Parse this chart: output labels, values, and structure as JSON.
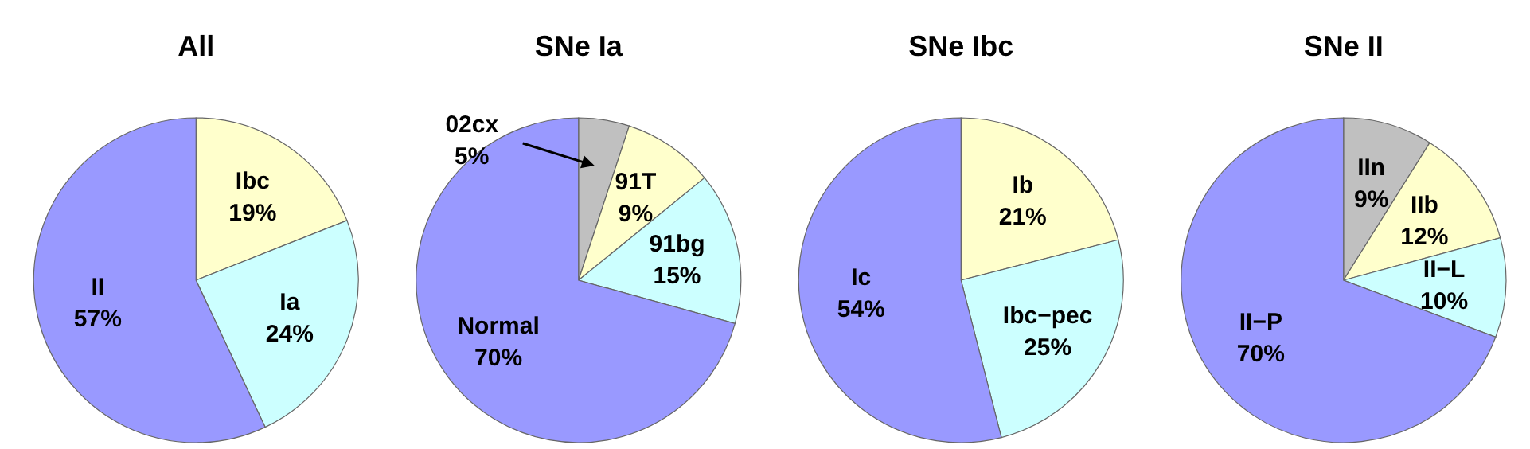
{
  "chart_data": [
    {
      "type": "pie",
      "title": "All",
      "categories": [
        "Ibc",
        "Ia",
        "II"
      ],
      "values": [
        19,
        24,
        57
      ],
      "value_labels": [
        "19%",
        "24%",
        "57%"
      ],
      "colors": [
        "#ffffcc",
        "#ccffff",
        "#9999ff"
      ]
    },
    {
      "type": "pie",
      "title": "SNe Ia",
      "categories": [
        "02cx",
        "91T",
        "91bg",
        "Normal"
      ],
      "values": [
        5,
        9,
        15,
        70
      ],
      "value_labels": [
        "5%",
        "9%",
        "15%",
        "70%"
      ],
      "colors": [
        "#c0c0c0",
        "#ffffcc",
        "#ccffff",
        "#9999ff"
      ]
    },
    {
      "type": "pie",
      "title": "SNe Ibc",
      "categories": [
        "Ib",
        "Ibc−pec",
        "Ic"
      ],
      "values": [
        21,
        25,
        54
      ],
      "value_labels": [
        "21%",
        "25%",
        "54%"
      ],
      "colors": [
        "#ffffcc",
        "#ccffff",
        "#9999ff"
      ]
    },
    {
      "type": "pie",
      "title": "SNe II",
      "categories": [
        "IIn",
        "IIb",
        "II−L",
        "II−P"
      ],
      "values": [
        9,
        12,
        10,
        70
      ],
      "value_labels": [
        "9%",
        "12%",
        "10%",
        "70%"
      ],
      "colors": [
        "#c0c0c0",
        "#ffffcc",
        "#ccffff",
        "#9999ff"
      ]
    }
  ]
}
